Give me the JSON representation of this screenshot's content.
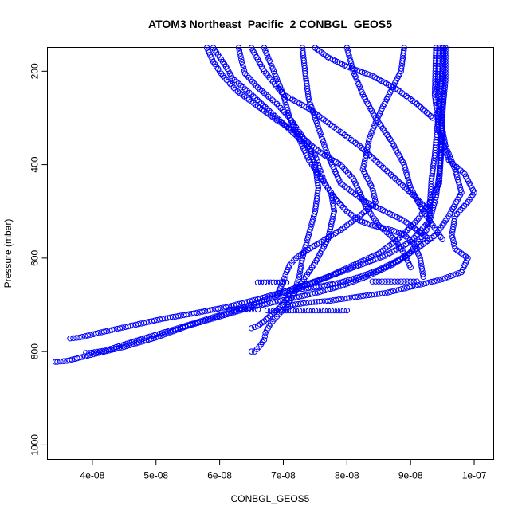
{
  "chart_data": {
    "type": "scatter",
    "title": "ATOM3 Northeast_Pacific_2 CONBGL_GEOS5",
    "xlabel": "CONBGL_GEOS5",
    "ylabel": "Pressure (mbar)",
    "xlim": [
      3.3e-08,
      1.03e-07
    ],
    "ylim": [
      1030,
      150
    ],
    "y_reversed": true,
    "x_ticks": [
      4e-08,
      5e-08,
      6e-08,
      7e-08,
      8e-08,
      9e-08,
      1e-07
    ],
    "x_tick_labels": [
      "4e-08",
      "5e-08",
      "6e-08",
      "7e-08",
      "8e-08",
      "9e-08",
      "1e-07"
    ],
    "y_ticks": [
      200,
      400,
      600,
      800,
      1000
    ],
    "y_tick_labels": [
      "200",
      "400",
      "600",
      "800",
      "1000"
    ],
    "marker": "open-circle",
    "marker_color": "#0000ff",
    "grid": false,
    "legend": "none",
    "series": [
      {
        "x": [
          9.5e-08,
          9.5e-08,
          9.46e-08,
          9.42e-08,
          9.38e-08,
          9.33e-08,
          9.31e-08,
          9.3e-08,
          9.25e-08,
          9.1e-08,
          8.95e-08,
          8.7e-08,
          8.3e-08,
          7.9e-08,
          7.5e-08,
          7e-08,
          6.5e-08,
          6e-08,
          5.5e-08,
          5e-08,
          4.5e-08,
          4.1e-08,
          3.8e-08,
          3.6e-08,
          3.45e-08,
          3.42e-08
        ],
        "y": [
          150,
          200,
          260,
          320,
          380,
          430,
          470,
          510,
          540,
          570,
          595,
          615,
          640,
          660,
          675,
          690,
          705,
          725,
          745,
          770,
          790,
          803,
          813,
          820,
          822,
          822
        ]
      },
      {
        "x": [
          9.55e-08,
          9.55e-08,
          9.5e-08,
          9.48e-08,
          9.45e-08,
          9.4e-08,
          9.3e-08,
          9e-08,
          8.6e-08,
          8.1e-08,
          7.6e-08,
          7.1e-08,
          6.6e-08,
          6.1e-08,
          5.6e-08,
          5.1e-08,
          4.6e-08,
          4.1e-08,
          3.8e-08,
          3.65e-08
        ],
        "y": [
          150,
          220,
          290,
          350,
          420,
          470,
          520,
          565,
          595,
          620,
          645,
          668,
          688,
          705,
          718,
          730,
          745,
          760,
          770,
          772
        ]
      },
      {
        "x": [
          9.52e-08,
          9.52e-08,
          9.5e-08,
          9.48e-08,
          9.45e-08,
          9.3e-08,
          9.1e-08,
          8.8e-08,
          8.5e-08,
          8.1e-08,
          7.7e-08,
          7.3e-08,
          6.9e-08,
          6.5e-08,
          6.1e-08,
          5.7e-08,
          5.3e-08,
          4.9e-08,
          4.5e-08,
          4.2e-08,
          3.95e-08,
          3.9e-08
        ],
        "y": [
          150,
          230,
          310,
          380,
          440,
          480,
          520,
          560,
          590,
          615,
          640,
          662,
          680,
          700,
          718,
          735,
          752,
          768,
          785,
          798,
          803,
          803
        ]
      },
      {
        "x": [
          9.4e-08,
          9.38e-08,
          9.45e-08,
          9.6e-08,
          9.85e-08,
          1e-07,
          9.9e-08,
          9.7e-08,
          9.65e-08,
          9.7e-08,
          9.9e-08,
          9.8e-08,
          9.5e-08,
          9.2e-08,
          8.9e-08,
          8.6e-08,
          8.3e-08,
          8e-08,
          7.7e-08,
          7.4e-08,
          7.15e-08,
          7e-08,
          6.9e-08,
          6.8e-08,
          6.72e-08,
          6.7e-08,
          6.62e-08,
          6.55e-08,
          6.5e-08
        ],
        "y": [
          150,
          250,
          330,
          390,
          420,
          460,
          480,
          510,
          550,
          580,
          600,
          630,
          645,
          655,
          665,
          675,
          680,
          686,
          692,
          695,
          700,
          710,
          725,
          740,
          760,
          775,
          790,
          800,
          800
        ]
      },
      {
        "x": [
          9.45e-08,
          9.42e-08,
          9.48e-08,
          9.55e-08,
          9.7e-08,
          9.8e-08,
          9.6e-08,
          9.4e-08,
          9.1e-08,
          8.8e-08,
          8.5e-08,
          8.2e-08,
          7.9e-08,
          7.6e-08,
          7.35e-08,
          7.2e-08,
          7.1e-08,
          7.05e-08,
          6.95e-08,
          6.82e-08,
          6.7e-08,
          6.6e-08,
          6.5e-08
        ],
        "y": [
          150,
          240,
          310,
          360,
          410,
          460,
          510,
          550,
          580,
          605,
          625,
          640,
          652,
          660,
          665,
          667,
          675,
          690,
          705,
          720,
          735,
          745,
          750
        ]
      },
      {
        "x": [
          8.9e-08,
          8.85e-08,
          8.7e-08,
          8.55e-08,
          8.45e-08,
          8.35e-08,
          8.3e-08,
          8.25e-08,
          8.4e-08,
          8.45e-08,
          8.2e-08,
          7.9e-08,
          7.6e-08,
          7.35e-08,
          7.2e-08,
          7.1e-08,
          7.05e-08,
          7e-08,
          6.95e-08,
          6.9e-08
        ],
        "y": [
          150,
          200,
          240,
          280,
          310,
          345,
          380,
          410,
          450,
          480,
          510,
          540,
          565,
          585,
          600,
          615,
          630,
          650,
          665,
          680
        ]
      },
      {
        "x": [
          6.3e-08,
          6.35e-08,
          6.4e-08,
          6.6e-08,
          6.9e-08,
          7.1e-08,
          7.25e-08,
          7.4e-08,
          7.5e-08,
          7.55e-08,
          7.5e-08,
          7.4e-08,
          7.3e-08,
          7.25e-08,
          7.2e-08
        ],
        "y": [
          150,
          180,
          205,
          235,
          270,
          300,
          330,
          360,
          400,
          450,
          500,
          550,
          600,
          640,
          660
        ]
      },
      {
        "x": [
          5.9e-08,
          6e-08,
          6.1e-08,
          6.2e-08,
          6.5e-08,
          6.9e-08,
          7.3e-08,
          7.5e-08,
          7.55e-08,
          7.6e-08,
          7.65e-08,
          7.75e-08,
          7.8e-08,
          7.7e-08,
          7.5e-08,
          7.3e-08,
          7.15e-08,
          7.05e-08
        ],
        "y": [
          150,
          170,
          190,
          215,
          250,
          300,
          350,
          380,
          400,
          420,
          440,
          460,
          500,
          560,
          610,
          650,
          680,
          705
        ]
      },
      {
        "x": [
          5.8e-08,
          5.9e-08,
          6.05e-08,
          6.25e-08,
          6.6e-08,
          6.9e-08,
          7.2e-08,
          7.45e-08,
          7.65e-08,
          7.9e-08,
          8.1e-08,
          8.2e-08,
          8.3e-08,
          8.5e-08,
          8.75e-08,
          8.9e-08,
          9e-08
        ],
        "y": [
          150,
          180,
          210,
          240,
          275,
          305,
          330,
          360,
          380,
          400,
          430,
          460,
          490,
          530,
          560,
          590,
          620
        ]
      },
      {
        "x": [
          6.7e-08,
          6.85e-08,
          7e-08,
          7.1e-08,
          7.25e-08,
          7.4e-08,
          7.6e-08,
          7.8e-08,
          8e-08,
          8.2e-08,
          8.4e-08,
          8.7e-08,
          8.9e-08,
          9.05e-08,
          9.15e-08,
          9.2e-08
        ],
        "y": [
          150,
          200,
          250,
          300,
          345,
          390,
          430,
          470,
          500,
          520,
          530,
          540,
          550,
          570,
          600,
          640
        ]
      },
      {
        "x": [
          7.3e-08,
          7.35e-08,
          7.4e-08,
          7.5e-08,
          7.6e-08,
          7.7e-08,
          7.8e-08,
          7.9e-08,
          8.1e-08,
          8.3e-08,
          8.6e-08,
          8.9e-08,
          9.1e-08,
          9.3e-08
        ],
        "y": [
          150,
          210,
          260,
          300,
          340,
          380,
          410,
          440,
          460,
          480,
          500,
          520,
          540,
          560
        ]
      },
      {
        "x": [
          8e-08,
          8.1e-08,
          8.25e-08,
          8.45e-08,
          8.7e-08,
          8.9e-08,
          9e-08,
          9.2e-08,
          9.35e-08,
          9.5e-08
        ],
        "y": [
          150,
          200,
          250,
          300,
          350,
          400,
          450,
          500,
          530,
          560
        ]
      },
      {
        "x": [
          6.5e-08,
          6.7e-08,
          7e-08,
          7.4e-08,
          7.8e-08,
          8.2e-08,
          8.6e-08,
          9e-08,
          9.3e-08
        ],
        "y": [
          150,
          200,
          250,
          280,
          320,
          360,
          410,
          460,
          500
        ]
      },
      {
        "x": [
          7.5e-08,
          7.7e-08,
          8e-08,
          8.4e-08,
          8.8e-08,
          9.1e-08,
          9.35e-08
        ],
        "y": [
          150,
          170,
          190,
          210,
          240,
          270,
          300
        ]
      },
      {
        "x": [
          8.4e-08,
          8.5e-08,
          8.6e-08,
          8.7e-08,
          8.8e-08,
          8.9e-08,
          9e-08,
          9.1e-08
        ],
        "y": [
          650,
          650,
          650,
          650,
          650,
          650,
          650,
          650
        ]
      },
      {
        "x": [
          6.75e-08,
          6.9e-08,
          7.1e-08,
          7.3e-08,
          7.5e-08,
          7.7e-08,
          7.9e-08,
          8e-08
        ],
        "y": [
          712,
          712,
          712,
          712,
          712,
          712,
          712,
          712
        ]
      },
      {
        "x": [
          6.15e-08,
          6.3e-08,
          6.45e-08,
          6.6e-08
        ],
        "y": [
          710,
          710,
          710,
          710
        ]
      },
      {
        "x": [
          6.6e-08,
          6.75e-08,
          6.9e-08,
          7.05e-08
        ],
        "y": [
          652,
          652,
          652,
          652
        ]
      }
    ]
  }
}
